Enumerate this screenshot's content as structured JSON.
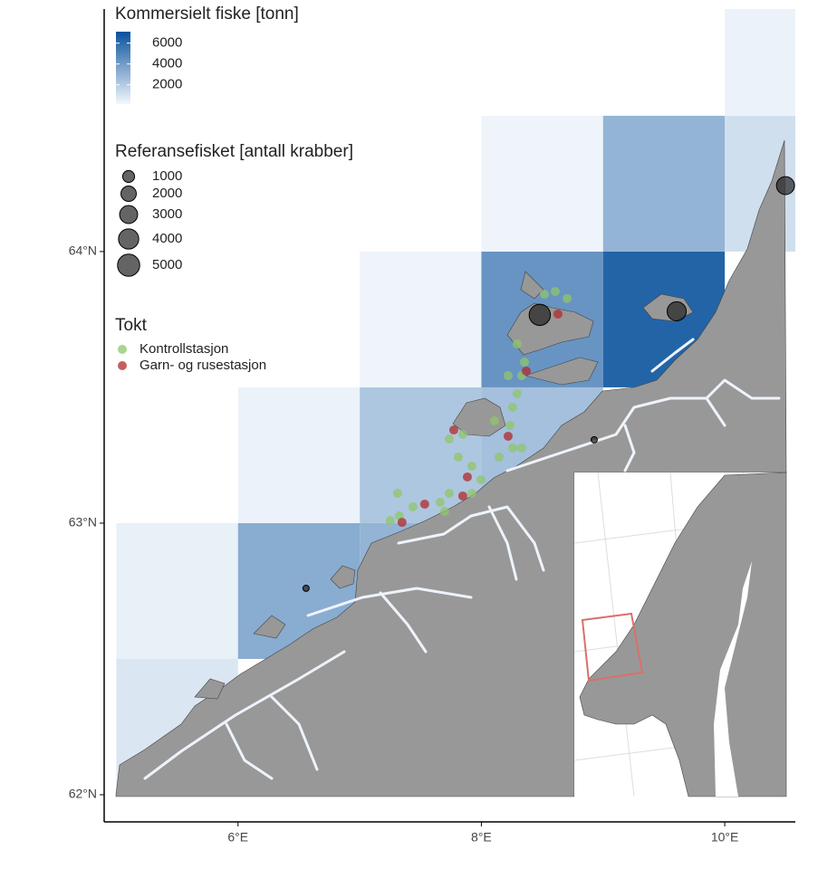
{
  "map": {
    "xlim": [
      4.9,
      10.58
    ],
    "ylim": [
      61.9,
      64.893
    ],
    "xticks": [
      {
        "value": 6,
        "label": "6°E"
      },
      {
        "value": 8,
        "label": "8°E"
      },
      {
        "value": 10,
        "label": "10°E"
      }
    ],
    "yticks": [
      {
        "value": 62,
        "label": "62°N"
      },
      {
        "value": 63,
        "label": "63°N"
      },
      {
        "value": 64,
        "label": "64°N"
      }
    ],
    "fill_legend": {
      "title": "Kommersielt fiske [tonn]",
      "ticks": [
        2000,
        4000,
        6000
      ],
      "range": [
        150,
        7100
      ],
      "colors": [
        "#f4f8fd",
        "#08519c"
      ]
    },
    "cell_size": [
      1,
      0.5
    ],
    "cells": [
      {
        "lon": 5,
        "lat": 62,
        "tonnes": 900
      },
      {
        "lon": 5,
        "lat": 62.5,
        "tonnes": 500
      },
      {
        "lon": 6,
        "lat": 62.5,
        "tonnes": 3300
      },
      {
        "lon": 6,
        "lat": 63,
        "tonnes": 400
      },
      {
        "lon": 7,
        "lat": 62.5,
        "tonnes": 3000
      },
      {
        "lon": 7,
        "lat": 63,
        "tonnes": 2200
      },
      {
        "lon": 7,
        "lat": 63.5,
        "tonnes": 300
      },
      {
        "lon": 8,
        "lat": 63,
        "tonnes": 2500
      },
      {
        "lon": 8,
        "lat": 63.5,
        "tonnes": 4300
      },
      {
        "lon": 9,
        "lat": 63.5,
        "tonnes": 6300
      },
      {
        "lon": 8,
        "lat": 64,
        "tonnes": 300
      },
      {
        "lon": 9,
        "lat": 64,
        "tonnes": 3000
      },
      {
        "lon": 10,
        "lat": 64,
        "tonnes": 1200
      },
      {
        "lon": 10,
        "lat": 64.5,
        "tonnes": 400
      }
    ],
    "size_legend": {
      "title": "Referansefisket [antall krabber]",
      "values": [
        1000,
        2000,
        3000,
        4000,
        5000
      ]
    },
    "reference_catches": [
      {
        "lon": 8.48,
        "lat": 63.767,
        "crabs": 4500
      },
      {
        "lon": 9.605,
        "lat": 63.78,
        "crabs": 3500
      },
      {
        "lon": 10.499,
        "lat": 64.243,
        "crabs": 3000
      },
      {
        "lon": 8.927,
        "lat": 63.307,
        "crabs": 100
      },
      {
        "lon": 6.559,
        "lat": 62.76,
        "crabs": 100
      }
    ],
    "tokt_legend": {
      "title": "Tokt",
      "entries": [
        {
          "name": "Kontrollstasjon",
          "color": "#8fc56a"
        },
        {
          "name": "Garn- og rusestasjon",
          "color": "#b22a2a"
        }
      ]
    },
    "stations": [
      {
        "lon": [
          8.518,
          8.607,
          8.704,
          8.294,
          8.354,
          8.331,
          8.22,
          8.294,
          8.257,
          8.108,
          8.235,
          7.847,
          7.736,
          7.81,
          7.922,
          8.145,
          8.257,
          8.331,
          7.996,
          7.922,
          7.736,
          7.661,
          7.311,
          7.326,
          7.251,
          7.438,
          7.698
        ],
        "lat": [
          63.843,
          63.853,
          63.827,
          63.66,
          63.593,
          63.543,
          63.543,
          63.477,
          63.427,
          63.377,
          63.36,
          63.327,
          63.31,
          63.243,
          63.21,
          63.243,
          63.277,
          63.277,
          63.16,
          63.11,
          63.11,
          63.077,
          63.11,
          63.027,
          63.01,
          63.06,
          63.043
        ]
      },
      {
        "lon": [
          8.629,
          8.369,
          7.773,
          8.22,
          7.885,
          7.847,
          7.534,
          7.348
        ],
        "lat": [
          63.77,
          63.56,
          63.343,
          63.32,
          63.17,
          63.1,
          63.07,
          63.003
        ]
      }
    ]
  }
}
